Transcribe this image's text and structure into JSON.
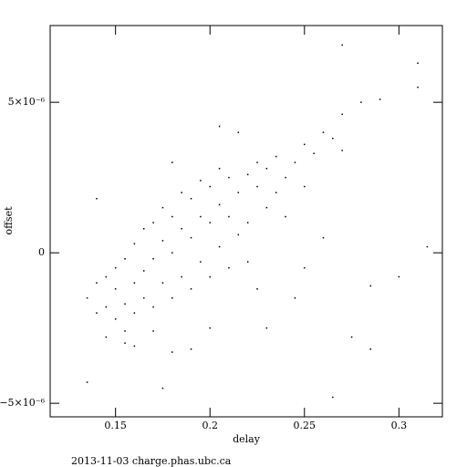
{
  "chart_data": {
    "type": "scatter",
    "x_label": "delay",
    "y_label": "offset",
    "footer": "2013-11-03 charge.phas.ubc.ca",
    "xlim": [
      0.1154,
      0.323
    ],
    "ylim": [
      -5.45e-06,
      7.55e-06
    ],
    "xticks": [
      0.15,
      0.2,
      0.25,
      0.3
    ],
    "yticks": [
      {
        "value": -5e-06,
        "label": "−5×10⁻⁶"
      },
      0,
      {
        "value": 5e-06,
        "label": "5×10⁻⁶"
      }
    ],
    "color": "#000000",
    "x": [
      0.135,
      0.14,
      0.14,
      0.145,
      0.145,
      0.15,
      0.15,
      0.15,
      0.155,
      0.155,
      0.155,
      0.16,
      0.16,
      0.16,
      0.165,
      0.165,
      0.165,
      0.17,
      0.17,
      0.17,
      0.175,
      0.175,
      0.175,
      0.18,
      0.18,
      0.18,
      0.185,
      0.185,
      0.185,
      0.19,
      0.19,
      0.19,
      0.195,
      0.195,
      0.195,
      0.2,
      0.2,
      0.2,
      0.205,
      0.205,
      0.205,
      0.21,
      0.21,
      0.21,
      0.215,
      0.215,
      0.22,
      0.22,
      0.22,
      0.225,
      0.225,
      0.23,
      0.23,
      0.235,
      0.235,
      0.24,
      0.24,
      0.245,
      0.25,
      0.25,
      0.255,
      0.26,
      0.265,
      0.27,
      0.27,
      0.28,
      0.29,
      0.31,
      0.315,
      0.3,
      0.285,
      0.285,
      0.265,
      0.135,
      0.16,
      0.18,
      0.175,
      0.23,
      0.31,
      0.27,
      0.245,
      0.25,
      0.26,
      0.2,
      0.19,
      0.17,
      0.145,
      0.225,
      0.14,
      0.205,
      0.18,
      0.215,
      0.275,
      0.155
    ],
    "y": [
      -1.5e-06,
      -2e-06,
      -1e-06,
      -1.8e-06,
      -8e-07,
      -2.2e-06,
      -1.2e-06,
      -5e-07,
      -1.7e-06,
      -2e-07,
      -2.6e-06,
      -1e-06,
      3e-07,
      -2e-06,
      -6e-07,
      8e-07,
      -1.5e-06,
      -2e-07,
      1e-06,
      -1.8e-06,
      4e-07,
      -1e-06,
      1.5e-06,
      0.0,
      1.2e-06,
      -1.5e-06,
      8e-07,
      2e-06,
      -8e-07,
      5e-07,
      1.8e-06,
      -1.2e-06,
      1.2e-06,
      2.4e-06,
      -3e-07,
      1e-06,
      2.2e-06,
      -8e-07,
      1.6e-06,
      2e-07,
      2.8e-06,
      1.2e-06,
      2.5e-06,
      -5e-07,
      2e-06,
      6e-07,
      2.6e-06,
      1e-06,
      -3e-07,
      2.2e-06,
      3e-06,
      1.5e-06,
      2.8e-06,
      2e-06,
      3.2e-06,
      2.5e-06,
      1.2e-06,
      3e-06,
      3.6e-06,
      2.2e-06,
      3.3e-06,
      4e-06,
      3.8e-06,
      4.6e-06,
      3.4e-06,
      5e-06,
      5.1e-06,
      5.5e-06,
      2e-07,
      -8e-07,
      -1.1e-06,
      -3.2e-06,
      -4.8e-06,
      -4.3e-06,
      -3.1e-06,
      -3.3e-06,
      -4.5e-06,
      -2.5e-06,
      6.3e-06,
      6.9e-06,
      -1.5e-06,
      -5e-07,
      5e-07,
      -2.5e-06,
      -3.2e-06,
      -2.6e-06,
      -2.8e-06,
      -1.2e-06,
      1.8e-06,
      4.2e-06,
      3e-06,
      4e-06,
      -2.8e-06,
      -3e-06
    ]
  }
}
